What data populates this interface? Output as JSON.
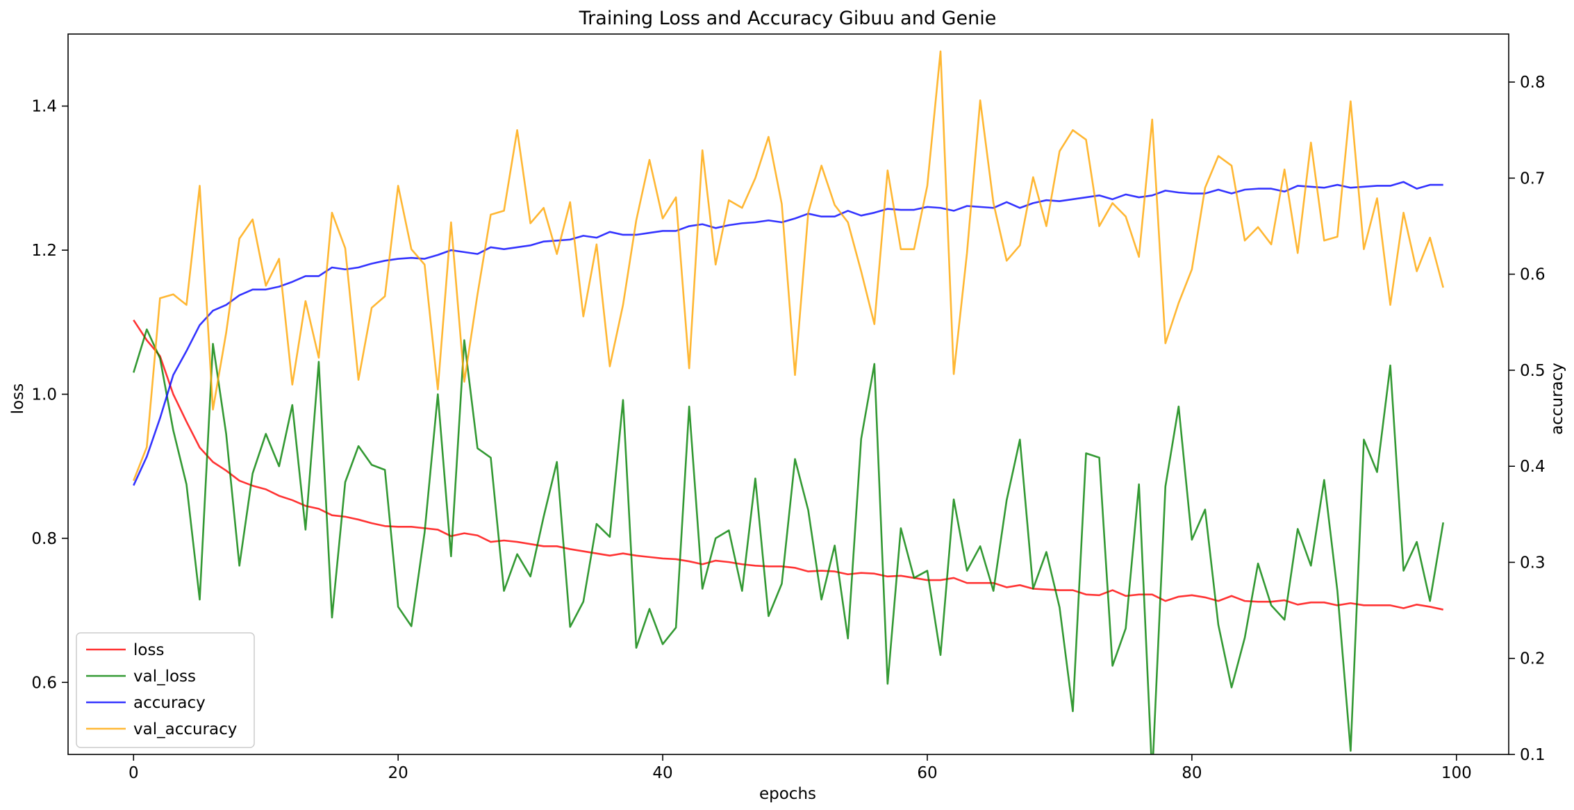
{
  "chart_data": {
    "type": "line",
    "title": "Training Loss and Accuracy Gibuu and Genie",
    "xlabel": "epochs",
    "ylabel_left": "loss",
    "ylabel_right": "accuracy",
    "xlim": [
      -4.95,
      103.95
    ],
    "ylim_left": [
      0.5,
      1.5
    ],
    "ylim_right": [
      0.1,
      0.85
    ],
    "xticks": [
      0,
      20,
      40,
      60,
      80,
      100
    ],
    "yticks_left": [
      0.6,
      0.8,
      1.0,
      1.2,
      1.4
    ],
    "yticks_right": [
      0.1,
      0.2,
      0.3,
      0.4,
      0.5,
      0.6,
      0.7,
      0.8
    ],
    "xtick_labels": [
      "0",
      "20",
      "40",
      "60",
      "80",
      "100"
    ],
    "ytick_labels_left": [
      "0.6",
      "0.8",
      "1.0",
      "1.2",
      "1.4"
    ],
    "ytick_labels_right": [
      "0.1",
      "0.2",
      "0.3",
      "0.4",
      "0.5",
      "0.6",
      "0.7",
      "0.8"
    ],
    "legend_position": "lower-left",
    "grid": false,
    "series": [
      {
        "name": "loss",
        "axis": "left",
        "color": "#ff0000",
        "values": [
          1.103,
          1.075,
          1.053,
          1.0,
          0.962,
          0.926,
          0.906,
          0.894,
          0.88,
          0.873,
          0.868,
          0.859,
          0.853,
          0.845,
          0.841,
          0.832,
          0.83,
          0.826,
          0.821,
          0.817,
          0.816,
          0.816,
          0.814,
          0.812,
          0.803,
          0.807,
          0.804,
          0.795,
          0.797,
          0.795,
          0.792,
          0.789,
          0.789,
          0.785,
          0.782,
          0.779,
          0.776,
          0.779,
          0.776,
          0.774,
          0.772,
          0.771,
          0.768,
          0.764,
          0.769,
          0.767,
          0.764,
          0.762,
          0.761,
          0.761,
          0.759,
          0.754,
          0.755,
          0.754,
          0.75,
          0.752,
          0.751,
          0.747,
          0.748,
          0.745,
          0.742,
          0.742,
          0.745,
          0.738,
          0.738,
          0.738,
          0.732,
          0.735,
          0.73,
          0.729,
          0.728,
          0.728,
          0.722,
          0.721,
          0.728,
          0.72,
          0.722,
          0.722,
          0.713,
          0.719,
          0.721,
          0.718,
          0.713,
          0.72,
          0.713,
          0.712,
          0.712,
          0.714,
          0.708,
          0.711,
          0.711,
          0.707,
          0.71,
          0.707,
          0.707,
          0.707,
          0.703,
          0.708,
          0.705,
          0.701
        ]
      },
      {
        "name": "val_loss",
        "axis": "left",
        "color": "#008000",
        "values": [
          1.03,
          1.09,
          1.05,
          0.95,
          0.875,
          0.715,
          1.07,
          0.945,
          0.762,
          0.89,
          0.945,
          0.9,
          0.985,
          0.812,
          1.045,
          0.69,
          0.878,
          0.928,
          0.902,
          0.895,
          0.705,
          0.678,
          0.808,
          1.0,
          0.775,
          1.075,
          0.925,
          0.912,
          0.727,
          0.778,
          0.747,
          0.83,
          0.906,
          0.677,
          0.712,
          0.82,
          0.802,
          0.992,
          0.648,
          0.702,
          0.653,
          0.676,
          0.983,
          0.73,
          0.8,
          0.811,
          0.727,
          0.883,
          0.692,
          0.737,
          0.91,
          0.839,
          0.715,
          0.79,
          0.661,
          0.938,
          1.042,
          0.598,
          0.814,
          0.745,
          0.755,
          0.638,
          0.854,
          0.755,
          0.789,
          0.727,
          0.853,
          0.937,
          0.73,
          0.781,
          0.704,
          0.56,
          0.918,
          0.912,
          0.623,
          0.675,
          0.875,
          0.47,
          0.872,
          0.983,
          0.798,
          0.84,
          0.68,
          0.593,
          0.662,
          0.765,
          0.707,
          0.687,
          0.813,
          0.762,
          0.881,
          0.727,
          0.505,
          0.937,
          0.892,
          1.04,
          0.755,
          0.795,
          0.713,
          0.822
        ]
      },
      {
        "name": "accuracy",
        "axis": "right",
        "color": "#0000ff",
        "values": [
          0.38,
          0.41,
          0.45,
          0.495,
          0.52,
          0.547,
          0.562,
          0.568,
          0.578,
          0.584,
          0.584,
          0.587,
          0.592,
          0.598,
          0.598,
          0.607,
          0.605,
          0.607,
          0.611,
          0.614,
          0.616,
          0.617,
          0.616,
          0.62,
          0.625,
          0.623,
          0.621,
          0.628,
          0.626,
          0.628,
          0.63,
          0.634,
          0.635,
          0.636,
          0.64,
          0.638,
          0.644,
          0.641,
          0.641,
          0.643,
          0.645,
          0.645,
          0.65,
          0.652,
          0.648,
          0.651,
          0.653,
          0.654,
          0.656,
          0.654,
          0.658,
          0.663,
          0.66,
          0.66,
          0.666,
          0.661,
          0.664,
          0.668,
          0.667,
          0.667,
          0.67,
          0.669,
          0.666,
          0.671,
          0.67,
          0.669,
          0.675,
          0.669,
          0.674,
          0.677,
          0.676,
          0.678,
          0.68,
          0.682,
          0.678,
          0.683,
          0.68,
          0.682,
          0.687,
          0.685,
          0.684,
          0.684,
          0.688,
          0.684,
          0.688,
          0.689,
          0.689,
          0.686,
          0.692,
          0.691,
          0.69,
          0.693,
          0.69,
          0.691,
          0.692,
          0.692,
          0.696,
          0.689,
          0.693,
          0.693
        ]
      },
      {
        "name": "val_accuracy",
        "axis": "right",
        "color": "#ffa500",
        "values": [
          0.385,
          0.42,
          0.575,
          0.579,
          0.568,
          0.692,
          0.459,
          0.539,
          0.637,
          0.657,
          0.588,
          0.616,
          0.485,
          0.572,
          0.513,
          0.664,
          0.627,
          0.49,
          0.565,
          0.577,
          0.692,
          0.626,
          0.61,
          0.48,
          0.654,
          0.488,
          0.579,
          0.662,
          0.666,
          0.75,
          0.653,
          0.669,
          0.621,
          0.675,
          0.556,
          0.631,
          0.504,
          0.568,
          0.656,
          0.719,
          0.658,
          0.68,
          0.502,
          0.729,
          0.61,
          0.677,
          0.669,
          0.7,
          0.743,
          0.673,
          0.495,
          0.664,
          0.713,
          0.672,
          0.654,
          0.603,
          0.548,
          0.708,
          0.626,
          0.626,
          0.692,
          0.832,
          0.496,
          0.622,
          0.781,
          0.674,
          0.614,
          0.63,
          0.701,
          0.65,
          0.728,
          0.75,
          0.74,
          0.65,
          0.674,
          0.66,
          0.618,
          0.761,
          0.528,
          0.57,
          0.605,
          0.69,
          0.723,
          0.713,
          0.635,
          0.649,
          0.631,
          0.709,
          0.622,
          0.737,
          0.635,
          0.639,
          0.78,
          0.626,
          0.679,
          0.568,
          0.664,
          0.603,
          0.638,
          0.586
        ]
      }
    ]
  }
}
